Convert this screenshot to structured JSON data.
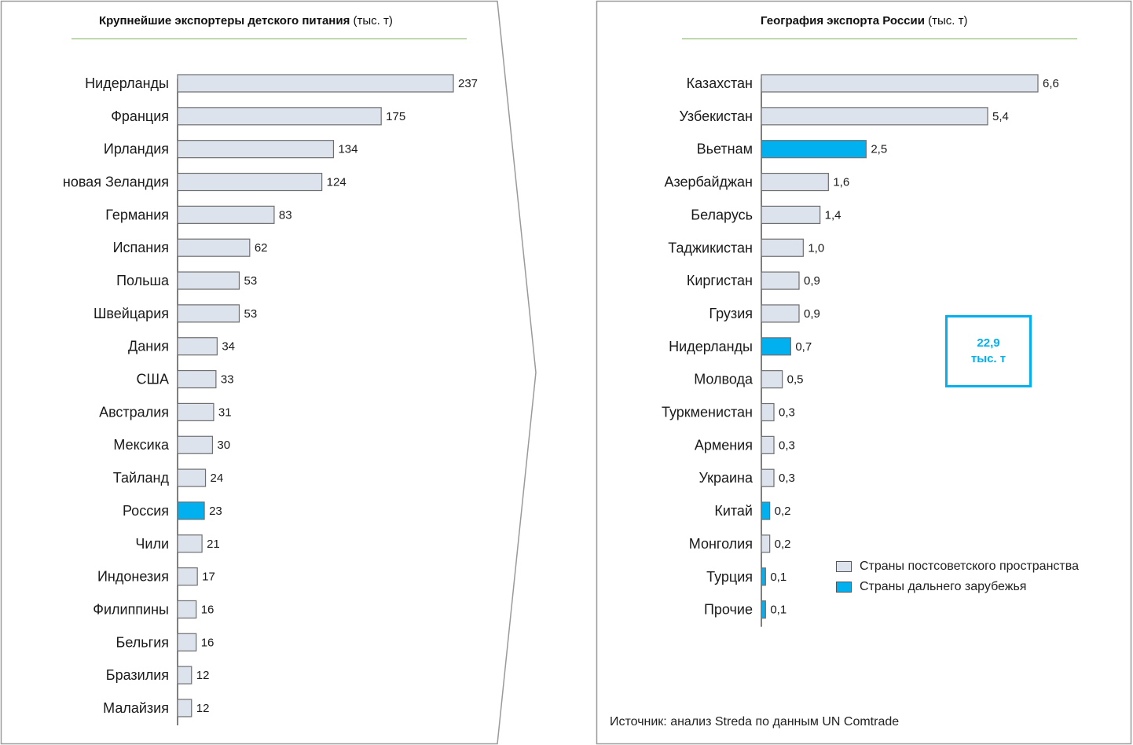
{
  "colors": {
    "domestic_bar": "#dde3ec",
    "foreign_bar": "#00b0ef",
    "bar_border": "#6f6f6f",
    "axis": "#555555",
    "frame": "#9a9a9a",
    "title_rule": "#7cb35a"
  },
  "left_panel": {
    "title_bold": "Крупнейшие экспортеры детского питания",
    "title_unit": "(тыс. т)"
  },
  "right_panel": {
    "title_bold": "География экспорта России",
    "title_unit": "(тыс. т)",
    "total_value": "22,9",
    "total_unit": "тыс. т",
    "legend": [
      {
        "label": "Страны постсоветского пространства",
        "group": "domestic"
      },
      {
        "label": "Страны дальнего зарубежья",
        "group": "foreign"
      }
    ],
    "source": "Источник: анализ Streda по данным UN Comtrade"
  },
  "chart_data": [
    {
      "type": "bar",
      "orientation": "horizontal",
      "title": "Крупнейшие экспортеры детского питания (тыс. т)",
      "categories": [
        "Нидерланды",
        "Франция",
        "Ирландия",
        "новая Зеландия",
        "Германия",
        "Испания",
        "Польша",
        "Швейцария",
        "Дания",
        "США",
        "Австралия",
        "Мексика",
        "Тайланд",
        "Россия",
        "Чили",
        "Индонезия",
        "Филиппины",
        "Бельгия",
        "Бразилия",
        "Малайзия"
      ],
      "values": [
        237,
        175,
        134,
        124,
        83,
        62,
        53,
        53,
        34,
        33,
        31,
        30,
        24,
        23,
        21,
        17,
        16,
        16,
        12,
        12
      ],
      "value_labels": [
        "237",
        "175",
        "134",
        "124",
        "83",
        "62",
        "53",
        "53",
        "34",
        "33",
        "31",
        "30",
        "24",
        "23",
        "21",
        "17",
        "16",
        "16",
        "12",
        "12"
      ],
      "highlight": [
        false,
        false,
        false,
        false,
        false,
        false,
        false,
        false,
        false,
        false,
        false,
        false,
        false,
        true,
        false,
        false,
        false,
        false,
        false,
        false
      ],
      "xlim": [
        0,
        237
      ],
      "grid": false
    },
    {
      "type": "bar",
      "orientation": "horizontal",
      "title": "География экспорта России (тыс. т)",
      "categories": [
        "Казахстан",
        "Узбекистан",
        "Вьетнам",
        "Азербайджан",
        "Беларусь",
        "Таджикистан",
        "Киргистан",
        "Грузия",
        "Нидерланды",
        "Молвода",
        "Туркменистан",
        "Армения",
        "Украина",
        "Китай",
        "Монголия",
        "Турция",
        "Прочие"
      ],
      "values": [
        6.6,
        5.4,
        2.5,
        1.6,
        1.4,
        1.0,
        0.9,
        0.9,
        0.7,
        0.5,
        0.3,
        0.3,
        0.3,
        0.2,
        0.2,
        0.1,
        0.1
      ],
      "value_labels": [
        "6,6",
        "5,4",
        "2,5",
        "1,6",
        "1,4",
        "1,0",
        "0,9",
        "0,9",
        "0,7",
        "0,5",
        "0,3",
        "0,3",
        "0,3",
        "0,2",
        "0,2",
        "0,1",
        "0,1"
      ],
      "group": [
        "domestic",
        "domestic",
        "foreign",
        "domestic",
        "domestic",
        "domestic",
        "domestic",
        "domestic",
        "foreign",
        "domestic",
        "domestic",
        "domestic",
        "domestic",
        "foreign",
        "domestic",
        "foreign",
        "foreign"
      ],
      "xlim": [
        0,
        6.6
      ],
      "grid": false,
      "legend_position": "right"
    }
  ]
}
